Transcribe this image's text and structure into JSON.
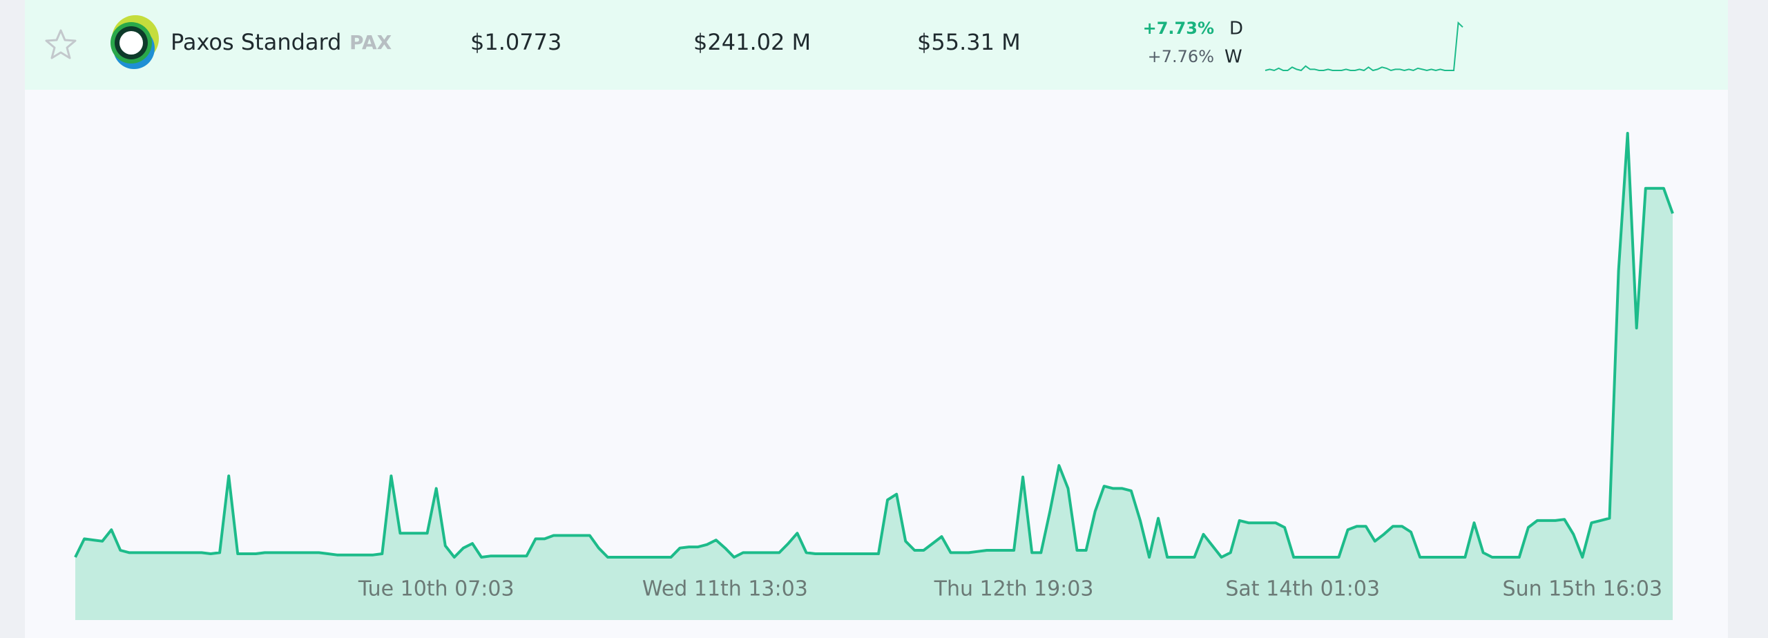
{
  "row": {
    "name": "Paxos Standard",
    "symbol": "PAX",
    "price": "$1.0773",
    "market_cap": "$241.02 M",
    "volume": "$55.31 M",
    "change_day": "+7.73%",
    "day_label": "D",
    "change_week": "+7.76%",
    "week_label": "W"
  },
  "chart_data": [
    {
      "type": "line",
      "color": "#1dbb8a",
      "values": [
        0,
        1,
        0,
        2,
        0,
        0,
        3,
        1,
        0,
        4,
        1,
        1,
        0,
        0,
        1,
        0,
        0,
        0,
        1,
        0,
        0,
        1,
        0,
        3,
        0,
        1,
        3,
        2,
        0,
        1,
        1,
        0,
        1,
        0,
        2,
        1,
        0,
        1,
        0,
        1,
        0,
        0,
        0,
        44,
        40
      ]
    },
    {
      "type": "area",
      "color": "#1dbb8a",
      "fill": "#c2ecdf",
      "categories": [
        null,
        null,
        null,
        null,
        null,
        null,
        null,
        null,
        null,
        null,
        null,
        null,
        null,
        null,
        null,
        null,
        null,
        null,
        null,
        null,
        null,
        null,
        null,
        null,
        null,
        null,
        null,
        null,
        null,
        null,
        null,
        null,
        null,
        null,
        null,
        null,
        null,
        null,
        null,
        null,
        "Tue 10th 07:03",
        null,
        null,
        null,
        null,
        null,
        null,
        null,
        null,
        null,
        null,
        null,
        null,
        null,
        null,
        null,
        null,
        null,
        null,
        null,
        null,
        null,
        null,
        null,
        null,
        null,
        null,
        null,
        null,
        null,
        null,
        null,
        "Wed 11th 13:03",
        null,
        null,
        null,
        null,
        null,
        null,
        null,
        null,
        null,
        null,
        null,
        null,
        null,
        null,
        null,
        null,
        null,
        null,
        null,
        null,
        null,
        null,
        null,
        null,
        null,
        null,
        null,
        null,
        null,
        null,
        null,
        "Thu 12th 19:03",
        null,
        null,
        null,
        null,
        null,
        null,
        null,
        null,
        null,
        null,
        null,
        null,
        null,
        null,
        null,
        null,
        null,
        null,
        null,
        null,
        null,
        null,
        null,
        null,
        null,
        null,
        null,
        null,
        null,
        null,
        null,
        "Sat 14th 01:03",
        null,
        null,
        null,
        null,
        null,
        null,
        null,
        null,
        null,
        null,
        null,
        null,
        null,
        null,
        null,
        null,
        null,
        null,
        null,
        null,
        null,
        null,
        null,
        null,
        null,
        null,
        null,
        null,
        null,
        null,
        "Sun 15th 16:03",
        null,
        null,
        null,
        null,
        null,
        null,
        null,
        null,
        null,
        null
      ],
      "values": [
        0,
        16,
        15,
        14,
        24,
        6,
        4,
        4,
        4,
        4,
        4,
        4,
        4,
        4,
        4,
        3,
        4,
        71,
        3,
        3,
        3,
        4,
        4,
        4,
        4,
        4,
        4,
        4,
        3,
        2,
        2,
        2,
        2,
        2,
        3,
        71,
        21,
        21,
        21,
        21,
        60,
        10,
        0,
        8,
        12,
        0,
        1,
        1,
        1,
        1,
        1,
        16,
        16,
        19,
        19,
        19,
        19,
        19,
        8,
        0,
        0,
        0,
        0,
        0,
        0,
        0,
        0,
        8,
        9,
        9,
        11,
        15,
        8,
        0,
        4,
        4,
        4,
        4,
        4,
        12,
        21,
        4,
        3,
        3,
        3,
        3,
        3,
        3,
        3,
        3,
        50,
        55,
        14,
        6,
        6,
        12,
        18,
        4,
        4,
        4,
        5,
        6,
        6,
        6,
        6,
        70,
        4,
        4,
        40,
        80,
        60,
        6,
        6,
        40,
        62,
        60,
        60,
        58,
        32,
        0,
        34,
        0,
        0,
        0,
        0,
        20,
        10,
        0,
        4,
        32,
        30,
        30,
        30,
        30,
        26,
        0,
        0,
        0,
        0,
        0,
        0,
        24,
        27,
        27,
        14,
        20,
        27,
        27,
        22,
        0,
        0,
        0,
        0,
        0,
        0,
        30,
        4,
        0,
        0,
        0,
        0,
        26,
        32,
        32,
        32,
        33,
        20,
        0,
        30,
        32,
        34,
        250,
        370,
        200,
        322,
        322,
        322,
        300
      ]
    }
  ]
}
